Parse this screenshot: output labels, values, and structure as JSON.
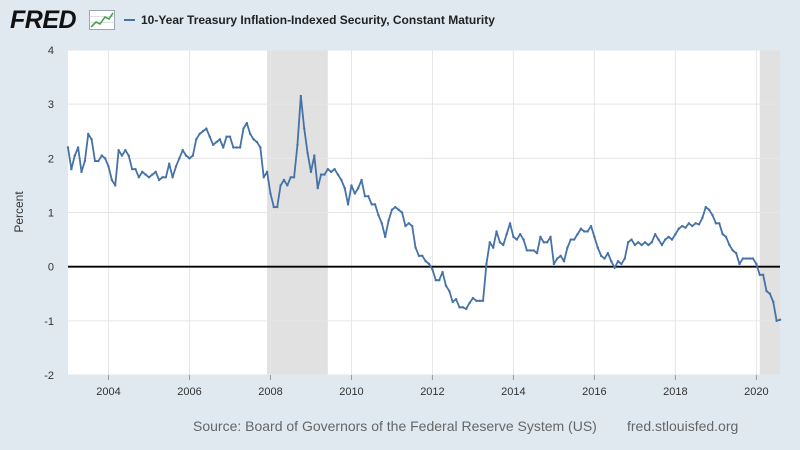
{
  "logo": {
    "text": "FRED",
    "icon": "fred-graph-icon"
  },
  "colors": {
    "line": "#4572a7",
    "recession": "#e1e1e1",
    "zero_line": "#000000",
    "grid": "#e6e6e6",
    "background": "#e1e9f0",
    "plot_bg": "#ffffff"
  },
  "footer": {
    "source": "Source: Board of Governors of the Federal Reserve System (US)",
    "site": "fred.stlouisfed.org"
  },
  "chart_data": {
    "type": "line",
    "title": "",
    "xlabel": "",
    "ylabel": "Percent",
    "ylim": [
      -2,
      4
    ],
    "xlim": [
      "2003-01",
      "2020-08"
    ],
    "yticks": [
      -2,
      -1,
      0,
      1,
      2,
      3,
      4
    ],
    "xticks": [
      "2004",
      "2006",
      "2008",
      "2010",
      "2012",
      "2014",
      "2016",
      "2018",
      "2020"
    ],
    "grid": true,
    "legend_placement": "top-left",
    "recessions": [
      [
        "2007-12",
        "2009-06"
      ],
      [
        "2020-02",
        "2020-08"
      ]
    ],
    "series": [
      {
        "name": "10-Year Treasury Inflation-Indexed Security, Constant Maturity",
        "points": [
          [
            "2003-01",
            2.2
          ],
          [
            "2003-02",
            1.8
          ],
          [
            "2003-03",
            2.05
          ],
          [
            "2003-04",
            2.2
          ],
          [
            "2003-05",
            1.75
          ],
          [
            "2003-06",
            1.95
          ],
          [
            "2003-07",
            2.45
          ],
          [
            "2003-08",
            2.35
          ],
          [
            "2003-09",
            1.95
          ],
          [
            "2003-10",
            1.95
          ],
          [
            "2003-11",
            2.05
          ],
          [
            "2003-12",
            2.0
          ],
          [
            "2004-01",
            1.85
          ],
          [
            "2004-02",
            1.6
          ],
          [
            "2004-03",
            1.5
          ],
          [
            "2004-04",
            2.15
          ],
          [
            "2004-05",
            2.05
          ],
          [
            "2004-06",
            2.15
          ],
          [
            "2004-07",
            2.05
          ],
          [
            "2004-08",
            1.8
          ],
          [
            "2004-09",
            1.8
          ],
          [
            "2004-10",
            1.65
          ],
          [
            "2004-11",
            1.75
          ],
          [
            "2004-12",
            1.7
          ],
          [
            "2005-01",
            1.65
          ],
          [
            "2005-02",
            1.7
          ],
          [
            "2005-03",
            1.75
          ],
          [
            "2005-04",
            1.6
          ],
          [
            "2005-05",
            1.65
          ],
          [
            "2005-06",
            1.65
          ],
          [
            "2005-07",
            1.9
          ],
          [
            "2005-08",
            1.65
          ],
          [
            "2005-09",
            1.85
          ],
          [
            "2005-10",
            2.0
          ],
          [
            "2005-11",
            2.15
          ],
          [
            "2005-12",
            2.05
          ],
          [
            "2006-01",
            2.0
          ],
          [
            "2006-02",
            2.05
          ],
          [
            "2006-03",
            2.35
          ],
          [
            "2006-04",
            2.45
          ],
          [
            "2006-05",
            2.5
          ],
          [
            "2006-06",
            2.55
          ],
          [
            "2006-07",
            2.4
          ],
          [
            "2006-08",
            2.25
          ],
          [
            "2006-09",
            2.3
          ],
          [
            "2006-10",
            2.35
          ],
          [
            "2006-11",
            2.2
          ],
          [
            "2006-12",
            2.4
          ],
          [
            "2007-01",
            2.4
          ],
          [
            "2007-02",
            2.2
          ],
          [
            "2007-03",
            2.2
          ],
          [
            "2007-04",
            2.2
          ],
          [
            "2007-05",
            2.55
          ],
          [
            "2007-06",
            2.65
          ],
          [
            "2007-07",
            2.45
          ],
          [
            "2007-08",
            2.35
          ],
          [
            "2007-09",
            2.3
          ],
          [
            "2007-10",
            2.2
          ],
          [
            "2007-11",
            1.65
          ],
          [
            "2007-12",
            1.75
          ],
          [
            "2008-01",
            1.35
          ],
          [
            "2008-02",
            1.1
          ],
          [
            "2008-03",
            1.1
          ],
          [
            "2008-04",
            1.5
          ],
          [
            "2008-05",
            1.6
          ],
          [
            "2008-06",
            1.5
          ],
          [
            "2008-07",
            1.65
          ],
          [
            "2008-08",
            1.65
          ],
          [
            "2008-09",
            2.25
          ],
          [
            "2008-10",
            3.15
          ],
          [
            "2008-11",
            2.55
          ],
          [
            "2008-12",
            2.1
          ],
          [
            "2009-01",
            1.75
          ],
          [
            "2009-02",
            2.05
          ],
          [
            "2009-03",
            1.45
          ],
          [
            "2009-04",
            1.7
          ],
          [
            "2009-05",
            1.7
          ],
          [
            "2009-06",
            1.8
          ],
          [
            "2009-07",
            1.75
          ],
          [
            "2009-08",
            1.8
          ],
          [
            "2009-09",
            1.7
          ],
          [
            "2009-10",
            1.6
          ],
          [
            "2009-11",
            1.45
          ],
          [
            "2009-12",
            1.15
          ],
          [
            "2010-01",
            1.5
          ],
          [
            "2010-02",
            1.35
          ],
          [
            "2010-03",
            1.45
          ],
          [
            "2010-04",
            1.6
          ],
          [
            "2010-05",
            1.3
          ],
          [
            "2010-06",
            1.3
          ],
          [
            "2010-07",
            1.15
          ],
          [
            "2010-08",
            1.15
          ],
          [
            "2010-09",
            0.95
          ],
          [
            "2010-10",
            0.8
          ],
          [
            "2010-11",
            0.55
          ],
          [
            "2010-12",
            0.85
          ],
          [
            "2011-01",
            1.05
          ],
          [
            "2011-02",
            1.1
          ],
          [
            "2011-03",
            1.05
          ],
          [
            "2011-04",
            1.0
          ],
          [
            "2011-05",
            0.75
          ],
          [
            "2011-06",
            0.8
          ],
          [
            "2011-07",
            0.75
          ],
          [
            "2011-08",
            0.35
          ],
          [
            "2011-09",
            0.2
          ],
          [
            "2011-10",
            0.2
          ],
          [
            "2011-11",
            0.1
          ],
          [
            "2011-12",
            0.05
          ],
          [
            "2012-01",
            -0.05
          ],
          [
            "2012-02",
            -0.25
          ],
          [
            "2012-03",
            -0.25
          ],
          [
            "2012-04",
            -0.1
          ],
          [
            "2012-05",
            -0.35
          ],
          [
            "2012-06",
            -0.45
          ],
          [
            "2012-07",
            -0.65
          ],
          [
            "2012-08",
            -0.6
          ],
          [
            "2012-09",
            -0.75
          ],
          [
            "2012-10",
            -0.75
          ],
          [
            "2012-11",
            -0.78
          ],
          [
            "2012-12",
            -0.67
          ],
          [
            "2013-01",
            -0.58
          ],
          [
            "2013-02",
            -0.63
          ],
          [
            "2013-03",
            -0.63
          ],
          [
            "2013-04",
            -0.63
          ],
          [
            "2013-05",
            0.05
          ],
          [
            "2013-06",
            0.45
          ],
          [
            "2013-07",
            0.35
          ],
          [
            "2013-08",
            0.65
          ],
          [
            "2013-09",
            0.45
          ],
          [
            "2013-10",
            0.4
          ],
          [
            "2013-11",
            0.6
          ],
          [
            "2013-12",
            0.8
          ],
          [
            "2014-01",
            0.55
          ],
          [
            "2014-02",
            0.5
          ],
          [
            "2014-03",
            0.6
          ],
          [
            "2014-04",
            0.5
          ],
          [
            "2014-05",
            0.3
          ],
          [
            "2014-06",
            0.3
          ],
          [
            "2014-07",
            0.3
          ],
          [
            "2014-08",
            0.25
          ],
          [
            "2014-09",
            0.55
          ],
          [
            "2014-10",
            0.45
          ],
          [
            "2014-11",
            0.45
          ],
          [
            "2014-12",
            0.55
          ],
          [
            "2015-01",
            0.05
          ],
          [
            "2015-02",
            0.15
          ],
          [
            "2015-03",
            0.2
          ],
          [
            "2015-04",
            0.1
          ],
          [
            "2015-05",
            0.35
          ],
          [
            "2015-06",
            0.5
          ],
          [
            "2015-07",
            0.5
          ],
          [
            "2015-08",
            0.6
          ],
          [
            "2015-09",
            0.7
          ],
          [
            "2015-10",
            0.65
          ],
          [
            "2015-11",
            0.65
          ],
          [
            "2015-12",
            0.75
          ],
          [
            "2016-01",
            0.55
          ],
          [
            "2016-02",
            0.35
          ],
          [
            "2016-03",
            0.2
          ],
          [
            "2016-04",
            0.15
          ],
          [
            "2016-05",
            0.25
          ],
          [
            "2016-06",
            0.1
          ],
          [
            "2016-07",
            -0.02
          ],
          [
            "2016-08",
            0.1
          ],
          [
            "2016-09",
            0.05
          ],
          [
            "2016-10",
            0.15
          ],
          [
            "2016-11",
            0.45
          ],
          [
            "2016-12",
            0.5
          ],
          [
            "2017-01",
            0.4
          ],
          [
            "2017-02",
            0.45
          ],
          [
            "2017-03",
            0.4
          ],
          [
            "2017-04",
            0.45
          ],
          [
            "2017-05",
            0.4
          ],
          [
            "2017-06",
            0.45
          ],
          [
            "2017-07",
            0.6
          ],
          [
            "2017-08",
            0.5
          ],
          [
            "2017-09",
            0.4
          ],
          [
            "2017-10",
            0.5
          ],
          [
            "2017-11",
            0.55
          ],
          [
            "2017-12",
            0.5
          ],
          [
            "2018-01",
            0.6
          ],
          [
            "2018-02",
            0.7
          ],
          [
            "2018-03",
            0.75
          ],
          [
            "2018-04",
            0.72
          ],
          [
            "2018-05",
            0.8
          ],
          [
            "2018-06",
            0.75
          ],
          [
            "2018-07",
            0.8
          ],
          [
            "2018-08",
            0.78
          ],
          [
            "2018-09",
            0.9
          ],
          [
            "2018-10",
            1.1
          ],
          [
            "2018-11",
            1.05
          ],
          [
            "2018-12",
            0.95
          ],
          [
            "2019-01",
            0.8
          ],
          [
            "2019-02",
            0.8
          ],
          [
            "2019-03",
            0.6
          ],
          [
            "2019-04",
            0.55
          ],
          [
            "2019-05",
            0.4
          ],
          [
            "2019-06",
            0.3
          ],
          [
            "2019-07",
            0.25
          ],
          [
            "2019-08",
            0.05
          ],
          [
            "2019-09",
            0.15
          ],
          [
            "2019-10",
            0.15
          ],
          [
            "2019-11",
            0.15
          ],
          [
            "2019-12",
            0.15
          ],
          [
            "2020-01",
            0.05
          ],
          [
            "2020-02",
            -0.15
          ],
          [
            "2020-03",
            -0.15
          ],
          [
            "2020-04",
            -0.45
          ],
          [
            "2020-05",
            -0.5
          ],
          [
            "2020-06",
            -0.65
          ],
          [
            "2020-07",
            -1.0
          ],
          [
            "2020-08",
            -0.98
          ]
        ]
      }
    ]
  }
}
